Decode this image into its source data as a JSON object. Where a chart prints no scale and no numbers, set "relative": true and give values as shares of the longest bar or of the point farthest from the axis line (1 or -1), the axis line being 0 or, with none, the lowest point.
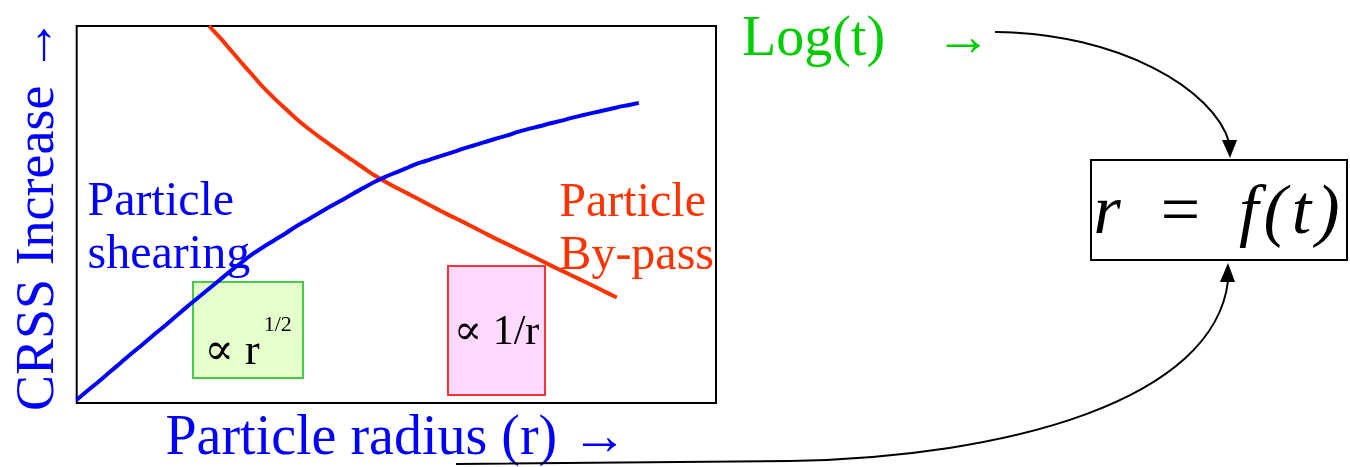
{
  "chart_data": {
    "type": "line",
    "relative": true,
    "marker": "none",
    "xlabel": "Particle radius (r) →",
    "ylabel": "CRSS Increase →",
    "categories": [
      null,
      null,
      null,
      null,
      null,
      null,
      null,
      null,
      null,
      null,
      null,
      null,
      null,
      null,
      null,
      null,
      null,
      null,
      null,
      null,
      null,
      null,
      null,
      null,
      null,
      null,
      null,
      null,
      null,
      null,
      null,
      null,
      null,
      null,
      null,
      null,
      null,
      null,
      null,
      null,
      null,
      null,
      null,
      null,
      null,
      null,
      null,
      null,
      null,
      null,
      null,
      null,
      null,
      null,
      null,
      null,
      null,
      null,
      null
    ],
    "series": [
      {
        "name": "Particle shearing",
        "color": "#0000ff",
        "values": [
          0.008,
          0.033,
          0.057,
          0.082,
          0.107,
          0.132,
          0.156,
          0.181,
          0.205,
          0.23,
          0.255,
          0.279,
          0.303,
          0.327,
          0.351,
          0.374,
          0.396,
          0.415,
          0.433,
          0.451,
          0.47,
          0.487,
          0.504,
          0.521,
          0.537,
          0.554,
          0.57,
          0.586,
          0.6,
          0.612,
          0.624,
          0.636,
          0.645,
          0.655,
          0.664,
          0.674,
          0.683,
          0.692,
          0.701,
          0.709,
          0.719,
          0.727,
          0.734,
          0.742,
          0.749,
          0.757,
          0.764,
          0.771,
          0.777,
          0.784,
          0.79,
          0.796,
          null,
          null,
          null,
          null,
          null,
          null,
          null
        ]
      },
      {
        "name": "Particle By-pass",
        "color": "#ff3300",
        "values": [
          null,
          null,
          null,
          null,
          null,
          null,
          null,
          null,
          null,
          null,
          null,
          null,
          1.0,
          0.969,
          0.935,
          0.901,
          0.868,
          0.835,
          0.806,
          0.779,
          0.752,
          0.728,
          0.706,
          0.685,
          0.664,
          0.644,
          0.624,
          0.604,
          0.587,
          0.571,
          0.556,
          0.541,
          0.525,
          0.51,
          0.495,
          0.481,
          0.466,
          0.451,
          0.436,
          0.422,
          0.408,
          0.394,
          0.38,
          0.365,
          0.351,
          0.337,
          0.323,
          0.309,
          0.294,
          0.28,
          null,
          null,
          null,
          null,
          null,
          null,
          null,
          null,
          null
        ]
      }
    ],
    "annotations": [
      "∝ r$^{1/2}$",
      "∝ 1/r",
      "Log(t) →",
      "r = f(t)"
    ]
  }
}
